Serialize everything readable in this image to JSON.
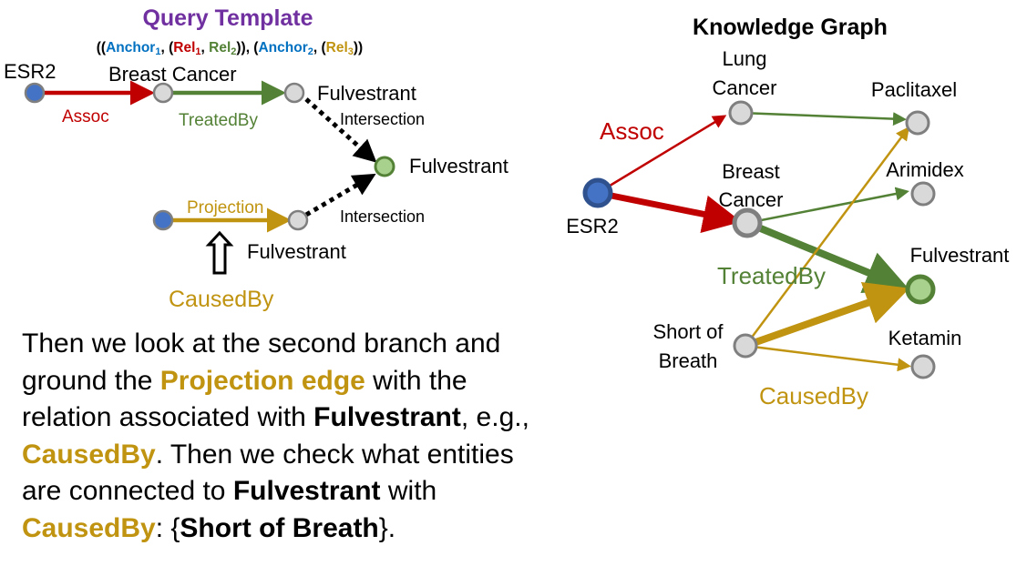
{
  "colors": {
    "assoc": "#c00000",
    "treated": "#538135",
    "caused": "#c09411",
    "title": "#7030a0",
    "anchor1": "#0070c0",
    "node_blue": "#4472c4",
    "node_grey": "#d9d9d9",
    "node_green": "#a9d18e"
  },
  "query": {
    "title": "Query Template",
    "template": {
      "open": "((",
      "anchor1": "Anchor",
      "anchor1_sub": "1",
      "comma1": ", (",
      "rel1": "Rel",
      "rel1_sub": "1",
      "comma2": ", ",
      "rel2": "Rel",
      "rel2_sub": "2",
      "mid": ")), (",
      "anchor2": "Anchor",
      "anchor2_sub": "2",
      "comma3": ", (",
      "rel3": "Rel",
      "rel3_sub": "3",
      "close": "))"
    },
    "labels": {
      "esr2": "ESR2",
      "breast_cancer": "Breast Cancer",
      "fulvestrant_top": "Fulvestrant",
      "fulvestrant_center": "Fulvestrant",
      "fulvestrant_bottom": "Fulvestrant",
      "intersection_top": "Intersection",
      "intersection_bottom": "Intersection",
      "assoc": "Assoc",
      "treated_by": "TreatedBy",
      "projection": "Projection",
      "caused_by": "CausedBy"
    }
  },
  "kg": {
    "title": "Knowledge Graph",
    "labels": {
      "lung1": "Lung",
      "lung2": "Cancer",
      "paclitaxel": "Paclitaxel",
      "assoc": "Assoc",
      "breast1": "Breast",
      "breast2": "Cancer",
      "arimidex": "Arimidex",
      "esr2": "ESR2",
      "fulvestrant": "Fulvestrant",
      "treated_by": "TreatedBy",
      "sob1": "Short of",
      "sob2": "Breath",
      "ketamin": "Ketamin",
      "caused_by": "CausedBy"
    }
  },
  "paragraph": {
    "s1": "Then we look at the second branch and ground the ",
    "b1": "Projection edge",
    "s2": " with the relation associated with ",
    "b2": "Fulvestrant",
    "s3": ", e.g., ",
    "b3": "CausedBy",
    "s4": ". Then we check what entities are connected to ",
    "b4": "Fulvestrant",
    "s5": " with ",
    "b5": "CausedBy",
    "s6": ": {",
    "b6": "Short of Breath",
    "s7": "}."
  }
}
